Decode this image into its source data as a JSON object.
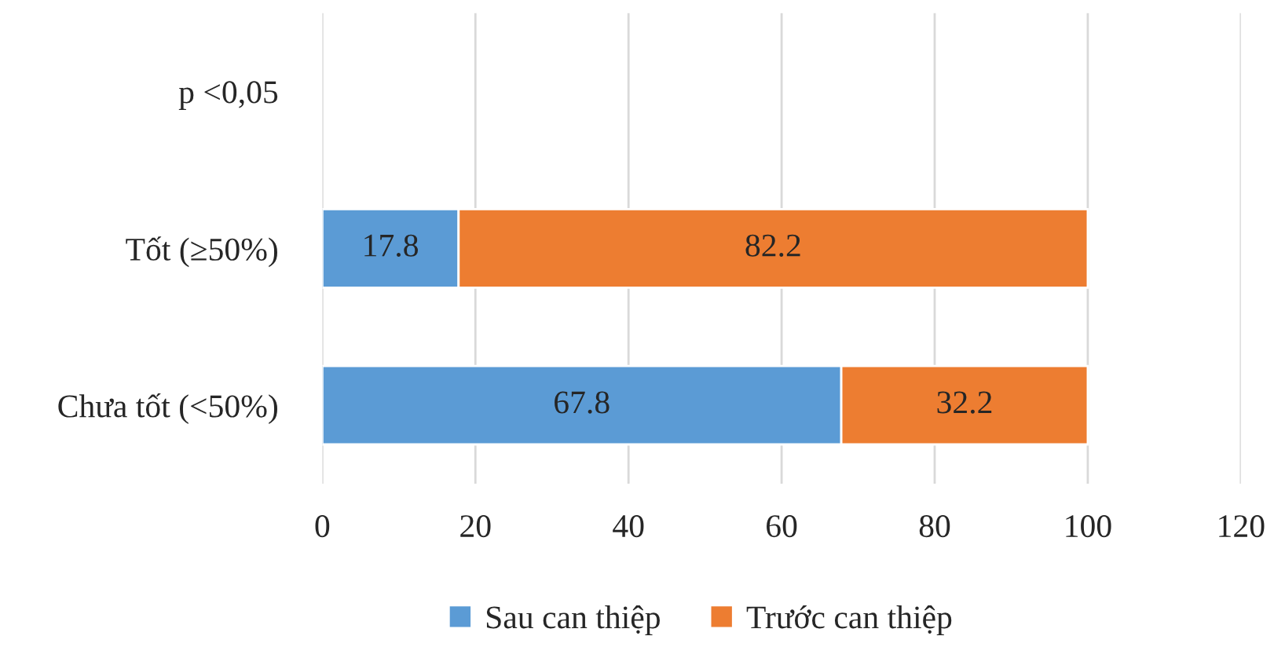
{
  "chart_data": {
    "type": "bar",
    "orientation": "horizontal",
    "stacked": true,
    "categories": [
      "p <0,05",
      "Tốt (≥50%)",
      "Chưa tốt (<50%)"
    ],
    "series": [
      {
        "name": "Sau can thiệp",
        "color": "#5b9bd5",
        "values": [
          null,
          17.8,
          67.8
        ]
      },
      {
        "name": "Trước can thiệp",
        "color": "#ed7d31",
        "values": [
          null,
          82.2,
          32.2
        ]
      }
    ],
    "xlim": [
      0,
      120
    ],
    "xticks": [
      0,
      20,
      40,
      60,
      80,
      100,
      120
    ],
    "grid": "x",
    "legend": "bottom",
    "data_labels": true
  }
}
